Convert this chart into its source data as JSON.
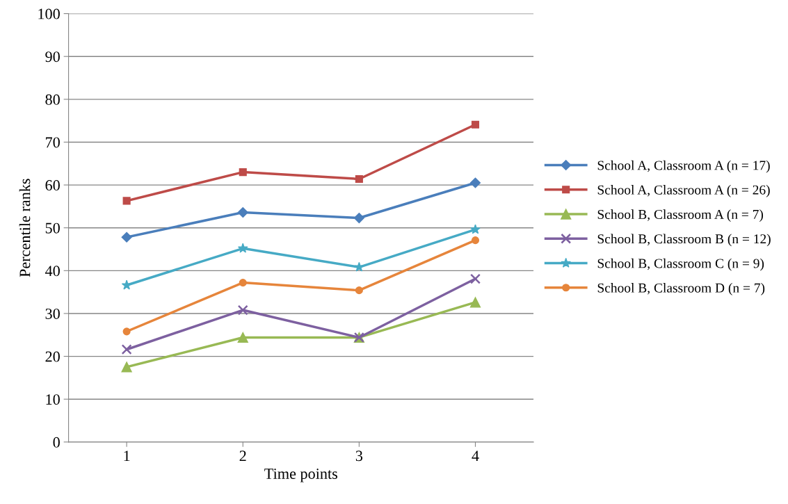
{
  "chart_data": {
    "type": "line",
    "xlabel": "Time points",
    "ylabel": "Percentile ranks",
    "categories": [
      "1",
      "2",
      "3",
      "4"
    ],
    "ylim": [
      0,
      100
    ],
    "yticks": [
      0,
      10,
      20,
      30,
      40,
      50,
      60,
      70,
      80,
      90,
      100
    ],
    "grid": "y",
    "legend": "right",
    "series": [
      {
        "name": "School A, Classroom A (n = 17)",
        "color": "#4a7ebb",
        "marker": "diamond",
        "values": [
          47.8,
          53.6,
          52.3,
          60.5
        ]
      },
      {
        "name": "School A, Classroom A (n = 26)",
        "color": "#be4b48",
        "marker": "square",
        "values": [
          56.3,
          63.0,
          61.4,
          74.1
        ]
      },
      {
        "name": "School B, Classroom A (n = 7)",
        "color": "#98b954",
        "marker": "triangle",
        "values": [
          17.5,
          24.4,
          24.4,
          32.6
        ]
      },
      {
        "name": "School B, Classroom B (n = 12)",
        "color": "#7d60a0",
        "marker": "cross",
        "values": [
          21.6,
          30.8,
          24.4,
          38.1
        ]
      },
      {
        "name": "School B, Classroom C (n = 9)",
        "color": "#46aac5",
        "marker": "star",
        "values": [
          36.6,
          45.2,
          40.8,
          49.6
        ]
      },
      {
        "name": "School B, Classroom D (n = 7)",
        "color": "#e6853b",
        "marker": "circle",
        "values": [
          25.8,
          37.2,
          35.4,
          47.1
        ]
      }
    ]
  }
}
